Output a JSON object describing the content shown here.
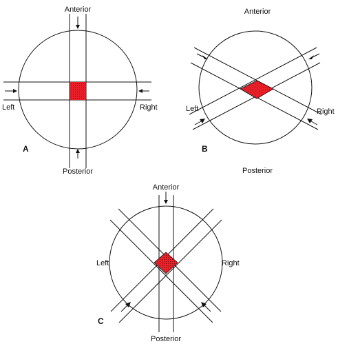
{
  "colors": {
    "overlap": "#e8202a",
    "stroke": "#111111",
    "background": "#ffffff"
  },
  "panels": {
    "a": {
      "letter": "A",
      "anterior": "Anterior",
      "posterior": "Posterior",
      "left": "Left",
      "right": "Right"
    },
    "b": {
      "letter": "B",
      "anterior": "Anterior",
      "posterior": "Posterior",
      "left": "Left",
      "right": "Right"
    },
    "c": {
      "letter": "C",
      "anterior": "Anterior",
      "posterior": "Posterior",
      "left": "Left",
      "right": "Right"
    }
  }
}
